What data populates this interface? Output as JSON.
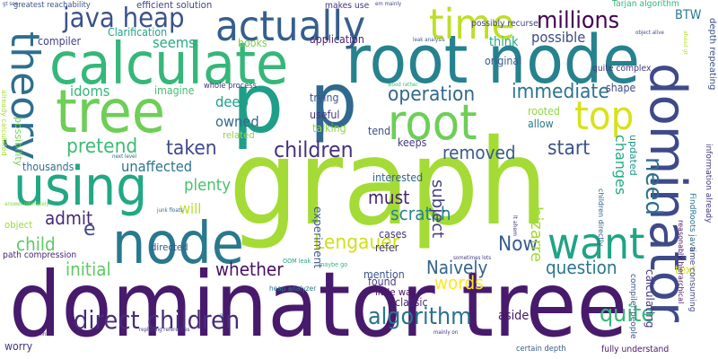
{
  "words": [
    {
      "text": "graph",
      "color": "#a5db36"
    },
    {
      "text": "dominator tree",
      "color": "#481a6c"
    },
    {
      "text": "root node",
      "color": "#26828e"
    },
    {
      "text": "calculate",
      "color": "#35b779"
    },
    {
      "text": "tree",
      "color": "#6ece58"
    },
    {
      "text": "p",
      "color": "#1f9e89"
    },
    {
      "text": "p",
      "color": "#31688e"
    },
    {
      "text": "root",
      "color": "#6ece58"
    },
    {
      "text": "node",
      "color": "#2a788e"
    },
    {
      "text": "using",
      "color": "#22a884"
    },
    {
      "text": "want",
      "color": "#20a386"
    },
    {
      "text": "dominator",
      "color": "#3e4a89"
    },
    {
      "text": "theory",
      "color": "#2e6f8e"
    },
    {
      "text": "actually",
      "color": "#355f8d"
    },
    {
      "text": "time",
      "color": "#bddf26"
    },
    {
      "text": "top",
      "color": "#d8e219"
    },
    {
      "text": "java heap",
      "color": "#3b528b"
    },
    {
      "text": "direct children",
      "color": "#472d7b"
    },
    {
      "text": "millions",
      "color": "#440154"
    },
    {
      "text": "algorithm",
      "color": "#2c728e"
    },
    {
      "text": "quite",
      "color": "#35b779"
    },
    {
      "text": "Lengauer",
      "color": "#d0e11c"
    },
    {
      "text": "operation",
      "color": "#31688e"
    },
    {
      "text": "immediate",
      "color": "#2c738e"
    },
    {
      "text": "children",
      "color": "#46327e"
    },
    {
      "text": "pretend",
      "color": "#3dbc74"
    },
    {
      "text": "taken",
      "color": "#3e4a89"
    },
    {
      "text": "removed",
      "color": "#375a8c"
    },
    {
      "text": "start",
      "color": "#3b528b"
    },
    {
      "text": "need",
      "color": "#2e6e8e"
    },
    {
      "text": "scratch",
      "color": "#25848e"
    },
    {
      "text": "Now",
      "color": "#365c8d"
    },
    {
      "text": "Naively",
      "color": "#33638d"
    },
    {
      "text": "question",
      "color": "#2a768e"
    },
    {
      "text": "admit",
      "color": "#482878"
    },
    {
      "text": "child",
      "color": "#5ec962"
    },
    {
      "text": "e",
      "color": "#3f4788"
    },
    {
      "text": "initial",
      "color": "#5ec962"
    },
    {
      "text": "whether",
      "color": "#471164"
    },
    {
      "text": "words",
      "color": "#fde725"
    },
    {
      "text": "subject",
      "color": "#433e85"
    },
    {
      "text": "bizarre",
      "color": "#a0da39"
    },
    {
      "text": "changes",
      "color": "#25ac82"
    },
    {
      "text": "must",
      "color": "#482071"
    },
    {
      "text": "plenty",
      "color": "#4ac16d"
    },
    {
      "text": "will",
      "color": "#b5de2b"
    },
    {
      "text": "deep",
      "color": "#1fa088"
    },
    {
      "text": "owned",
      "color": "#306a8e"
    },
    {
      "text": "unaffected",
      "color": "#2b758e"
    },
    {
      "text": "idoms",
      "color": "#35b779"
    },
    {
      "text": "seems",
      "color": "#25ab82"
    },
    {
      "text": "possible",
      "color": "#3e4989"
    },
    {
      "text": "BTW",
      "color": "#2a788e"
    },
    {
      "text": "compiler",
      "color": "#424086"
    },
    {
      "text": "books",
      "color": "#7ad151"
    },
    {
      "text": "Clarification",
      "color": "#20a486"
    },
    {
      "text": "application",
      "color": "#481f70"
    },
    {
      "text": "think",
      "color": "#22a884"
    },
    {
      "text": "original",
      "color": "#38588c"
    },
    {
      "text": "imagine",
      "color": "#42be71"
    },
    {
      "text": "trying",
      "color": "#3b528b"
    },
    {
      "text": "useful",
      "color": "#453882"
    },
    {
      "text": "talking",
      "color": "#8bd646"
    },
    {
      "text": "tend",
      "color": "#3d4d8a"
    },
    {
      "text": "keeps",
      "color": "#453882"
    },
    {
      "text": "allow",
      "color": "#287d8e"
    },
    {
      "text": "rooted",
      "color": "#90d743"
    },
    {
      "text": "updated",
      "color": "#1f978b"
    },
    {
      "text": "shape",
      "color": "#3f4889"
    },
    {
      "text": "related",
      "color": "#8fd744"
    },
    {
      "text": "thousands",
      "color": "#2d708e"
    },
    {
      "text": "interested",
      "color": "#33638d"
    },
    {
      "text": "experiment",
      "color": "#38588c"
    },
    {
      "text": "cases",
      "color": "#46337f"
    },
    {
      "text": "refer",
      "color": "#443a83"
    },
    {
      "text": "mention",
      "color": "#3b528b"
    },
    {
      "text": "found",
      "color": "#433d84"
    },
    {
      "text": "little way",
      "color": "#471365"
    },
    {
      "text": "classic",
      "color": "#482576"
    },
    {
      "text": "aside",
      "color": "#481668"
    },
    {
      "text": "worry",
      "color": "#46337f"
    },
    {
      "text": "calculating",
      "color": "#453581"
    },
    {
      "text": "text",
      "color": "#d8e219"
    },
    {
      "text": "directed",
      "color": "#39568c"
    },
    {
      "text": "object",
      "color": "#9bd93c"
    },
    {
      "text": "possibility",
      "color": "#73d056"
    },
    {
      "text": "path compression",
      "color": "#482576"
    },
    {
      "text": "efficient solution",
      "color": "#3f4788"
    },
    {
      "text": "possibly recurse",
      "color": "#414487"
    },
    {
      "text": "makes use",
      "color": "#463480"
    },
    {
      "text": "greatest reachability",
      "color": "#3b528b"
    },
    {
      "text": "Tarjan algorithm",
      "color": "#35b779"
    },
    {
      "text": "depth repeating",
      "color": "#3a538b"
    },
    {
      "text": "information already",
      "color": "#453781"
    },
    {
      "text": "quite complex",
      "color": "#453882"
    },
    {
      "text": "whole process",
      "color": "#46327e"
    },
    {
      "text": "FindRoots java",
      "color": "#2c728e"
    },
    {
      "text": "time consuming",
      "color": "#404688"
    },
    {
      "text": "reasonably hierarchical",
      "color": "#471063"
    },
    {
      "text": "children directly",
      "color": "#355e8d"
    },
    {
      "text": "compiler people",
      "color": "#3a548c"
    },
    {
      "text": "certain depth",
      "color": "#375b8d"
    },
    {
      "text": "fully understand",
      "color": "#481668"
    },
    {
      "text": "heap analyzer",
      "color": "#2a788e"
    },
    {
      "text": "OOM leak",
      "color": "#22a785"
    },
    {
      "text": "maybe go",
      "color": "#2fb47c"
    },
    {
      "text": "sometimes lots",
      "color": "#433e85"
    },
    {
      "text": "replacing references",
      "color": "#433e85"
    },
    {
      "text": "back links",
      "color": "#482173"
    },
    {
      "text": "mainly on",
      "color": "#472f7d"
    },
    {
      "text": "junk floats",
      "color": "#2f6c8e"
    },
    {
      "text": "next level",
      "color": "#31668e"
    },
    {
      "text": "already calculated",
      "color": "#a8db34"
    },
    {
      "text": "answer ultimately",
      "color": "#84d44b"
    },
    {
      "text": "gt see",
      "color": "#3b528b"
    },
    {
      "text": "em mainly",
      "color": "#414487"
    },
    {
      "text": "leak analysis",
      "color": "#38598c"
    },
    {
      "text": "object alive",
      "color": "#3e4c8a"
    },
    {
      "text": "wood rather",
      "color": "#3fbc73"
    },
    {
      "text": "ahead gt",
      "color": "#b2dd2d"
    },
    {
      "text": "lt ahem",
      "color": "#424086"
    },
    {
      "text": "P",
      "color": "#2a778e"
    }
  ]
}
